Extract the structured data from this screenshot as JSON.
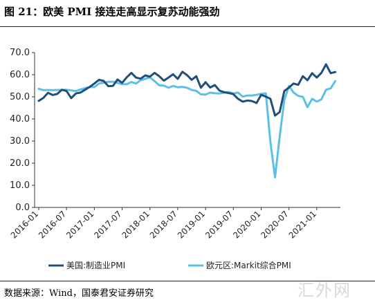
{
  "title": "图 21：欧美 PMI 接连走高显示复苏动能强劲",
  "source": "数据来源：Wind，国泰君安证券研究",
  "watermark": "汇外网",
  "chart_data": {
    "type": "line",
    "ylim": [
      0,
      70
    ],
    "yticks": [
      "0.0",
      "10.0",
      "20.0",
      "30.0",
      "40.0",
      "50.0",
      "60.0",
      "70.0"
    ],
    "xlabels": [
      "2016-01",
      "2016-07",
      "2017-01",
      "2017-07",
      "2018-01",
      "2018-07",
      "2019-01",
      "2019-07",
      "2020-01",
      "2020-07",
      "2021-01"
    ],
    "grid": false,
    "legend_position": "bottom",
    "series": [
      {
        "name": "美国:制造业PMI",
        "color": "#1f4e79",
        "x": [
          "2016-01",
          "2016-02",
          "2016-03",
          "2016-04",
          "2016-05",
          "2016-06",
          "2016-07",
          "2016-08",
          "2016-09",
          "2016-10",
          "2016-11",
          "2016-12",
          "2017-01",
          "2017-02",
          "2017-03",
          "2017-04",
          "2017-05",
          "2017-06",
          "2017-07",
          "2017-08",
          "2017-09",
          "2017-10",
          "2017-11",
          "2017-12",
          "2018-01",
          "2018-02",
          "2018-03",
          "2018-04",
          "2018-05",
          "2018-06",
          "2018-07",
          "2018-08",
          "2018-09",
          "2018-10",
          "2018-11",
          "2018-12",
          "2019-01",
          "2019-02",
          "2019-03",
          "2019-04",
          "2019-05",
          "2019-06",
          "2019-07",
          "2019-08",
          "2019-09",
          "2019-10",
          "2019-11",
          "2019-12",
          "2020-01",
          "2020-02",
          "2020-03",
          "2020-04",
          "2020-05",
          "2020-06",
          "2020-07",
          "2020-08",
          "2020-09",
          "2020-10",
          "2020-11",
          "2020-12",
          "2021-01",
          "2021-02",
          "2021-03",
          "2021-04",
          "2021-05"
        ],
        "values": [
          48.2,
          49.5,
          51.8,
          50.8,
          51.3,
          53.2,
          52.6,
          49.4,
          51.5,
          51.9,
          53.2,
          54.5,
          56.0,
          57.7,
          57.2,
          54.8,
          54.9,
          57.8,
          56.3,
          58.8,
          60.8,
          58.7,
          58.2,
          59.7,
          59.1,
          60.8,
          59.3,
          57.3,
          58.7,
          60.2,
          58.1,
          61.3,
          59.8,
          57.7,
          59.3,
          54.1,
          56.6,
          54.2,
          55.3,
          52.8,
          52.1,
          51.7,
          51.2,
          49.1,
          47.8,
          48.3,
          48.1,
          47.2,
          50.9,
          50.1,
          49.1,
          41.5,
          43.1,
          52.6,
          54.2,
          56.0,
          55.4,
          59.3,
          57.5,
          60.7,
          58.7,
          60.8,
          64.7,
          60.7,
          61.2
        ]
      },
      {
        "name": "欧元区:Markit综合PMI",
        "color": "#5bc0e8",
        "x": [
          "2016-01",
          "2016-02",
          "2016-03",
          "2016-04",
          "2016-05",
          "2016-06",
          "2016-07",
          "2016-08",
          "2016-09",
          "2016-10",
          "2016-11",
          "2016-12",
          "2017-01",
          "2017-02",
          "2017-03",
          "2017-04",
          "2017-05",
          "2017-06",
          "2017-07",
          "2017-08",
          "2017-09",
          "2017-10",
          "2017-11",
          "2017-12",
          "2018-01",
          "2018-02",
          "2018-03",
          "2018-04",
          "2018-05",
          "2018-06",
          "2018-07",
          "2018-08",
          "2018-09",
          "2018-10",
          "2018-11",
          "2018-12",
          "2019-01",
          "2019-02",
          "2019-03",
          "2019-04",
          "2019-05",
          "2019-06",
          "2019-07",
          "2019-08",
          "2019-09",
          "2019-10",
          "2019-11",
          "2019-12",
          "2020-01",
          "2020-02",
          "2020-03",
          "2020-04",
          "2020-05",
          "2020-06",
          "2020-07",
          "2020-08",
          "2020-09",
          "2020-10",
          "2020-11",
          "2020-12",
          "2021-01",
          "2021-02",
          "2021-03",
          "2021-04",
          "2021-05"
        ],
        "values": [
          53.6,
          53.0,
          53.1,
          53.0,
          53.1,
          53.1,
          53.2,
          52.9,
          52.6,
          53.3,
          53.9,
          54.4,
          54.4,
          56.0,
          56.4,
          56.8,
          56.8,
          56.3,
          55.7,
          55.7,
          56.7,
          56.0,
          57.5,
          58.1,
          58.8,
          57.1,
          55.2,
          55.1,
          54.1,
          54.9,
          54.3,
          54.5,
          54.1,
          53.1,
          52.7,
          51.1,
          51.0,
          51.9,
          51.6,
          51.5,
          51.8,
          52.2,
          51.5,
          51.9,
          50.1,
          50.6,
          50.6,
          50.9,
          51.3,
          51.6,
          29.7,
          13.6,
          31.9,
          48.5,
          54.9,
          51.9,
          50.4,
          50.0,
          45.3,
          49.1,
          47.8,
          48.8,
          53.2,
          53.8,
          57.1
        ]
      }
    ]
  }
}
